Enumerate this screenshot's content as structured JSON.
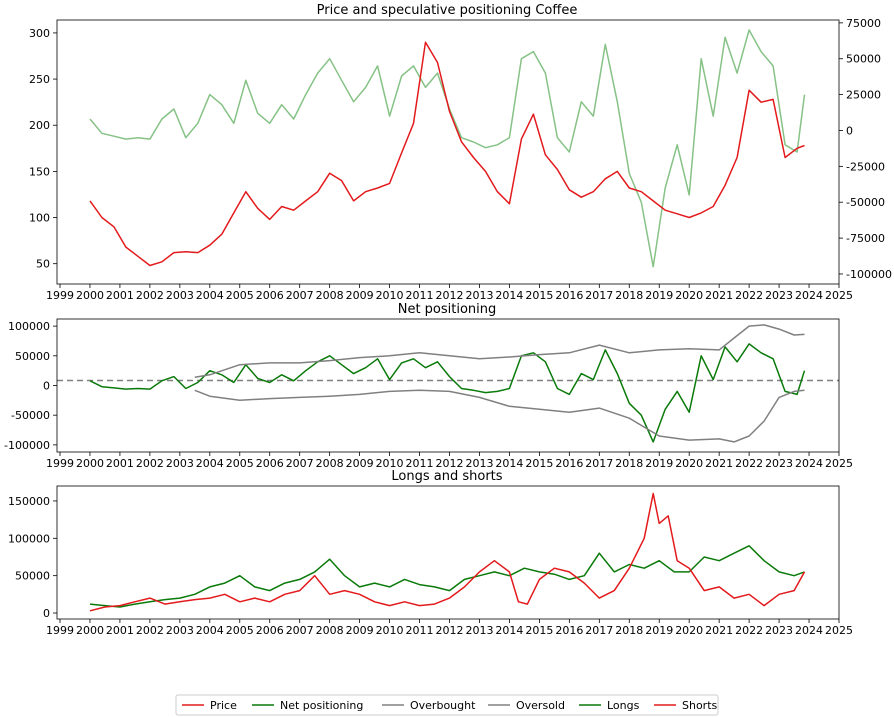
{
  "colors": {
    "price": "#e31a1c",
    "net": "#0a7a0a",
    "net_light": "#86c286",
    "bands": "#808080",
    "longs": "#0a7a0a",
    "shorts": "#e31a1c"
  },
  "legend": {
    "items": [
      {
        "label": "Price",
        "color": "#e31a1c"
      },
      {
        "label": "Net positioning",
        "color": "#0a7a0a"
      },
      {
        "label": "Overbought",
        "color": "#808080"
      },
      {
        "label": "Oversold",
        "color": "#808080"
      },
      {
        "label": "Longs",
        "color": "#0a7a0a"
      },
      {
        "label": "Shorts",
        "color": "#e31a1c"
      }
    ]
  },
  "chart_data": [
    {
      "type": "line",
      "title": "Price and speculative positioning Coffee",
      "x_ticks": [
        "1999",
        "2000",
        "2001",
        "2002",
        "2003",
        "2004",
        "2005",
        "2006",
        "2007",
        "2008",
        "2009",
        "2010",
        "2011",
        "2012",
        "2013",
        "2014",
        "2015",
        "2016",
        "2017",
        "2018",
        "2019",
        "2020",
        "2021",
        "2022",
        "2023",
        "2024",
        "2025"
      ],
      "xlim": [
        1998.9,
        2025.0
      ],
      "ylim": [
        28,
        314
      ],
      "y_ticks": [
        "50",
        "100",
        "150",
        "200",
        "250",
        "300"
      ],
      "y2lim": [
        -107000,
        77000
      ],
      "y2_ticks": [
        "-100000",
        "-75000",
        "-50000",
        "-25000",
        "0",
        "25000",
        "50000",
        "75000"
      ],
      "series": [
        {
          "name": "Price",
          "axis": "left",
          "color": "#e31a1c",
          "x": [
            2000.0,
            2000.4,
            2000.8,
            2001.2,
            2001.6,
            2002.0,
            2002.4,
            2002.8,
            2003.2,
            2003.6,
            2004.0,
            2004.4,
            2004.8,
            2005.2,
            2005.6,
            2006.0,
            2006.4,
            2006.8,
            2007.2,
            2007.6,
            2008.0,
            2008.4,
            2008.8,
            2009.2,
            2009.6,
            2010.0,
            2010.4,
            2010.8,
            2011.2,
            2011.6,
            2012.0,
            2012.4,
            2012.8,
            2013.2,
            2013.6,
            2014.0,
            2014.4,
            2014.8,
            2015.2,
            2015.6,
            2016.0,
            2016.4,
            2016.8,
            2017.2,
            2017.6,
            2018.0,
            2018.4,
            2018.8,
            2019.2,
            2019.6,
            2020.0,
            2020.4,
            2020.8,
            2021.2,
            2021.6,
            2022.0,
            2022.4,
            2022.8,
            2023.2,
            2023.6,
            2023.85
          ],
          "y": [
            118,
            100,
            90,
            68,
            58,
            48,
            52,
            62,
            63,
            62,
            70,
            82,
            105,
            128,
            110,
            98,
            112,
            108,
            118,
            128,
            148,
            140,
            118,
            128,
            132,
            137,
            170,
            202,
            290,
            268,
            215,
            182,
            165,
            150,
            128,
            115,
            185,
            212,
            168,
            152,
            130,
            122,
            128,
            142,
            150,
            132,
            128,
            118,
            108,
            104,
            100,
            105,
            112,
            135,
            165,
            238,
            225,
            228,
            165,
            175,
            178
          ]
        },
        {
          "name": "Net positioning",
          "axis": "right",
          "color": "#86c286",
          "x": [
            2000.0,
            2000.4,
            2000.8,
            2001.2,
            2001.6,
            2002.0,
            2002.4,
            2002.8,
            2003.2,
            2003.6,
            2004.0,
            2004.4,
            2004.8,
            2005.2,
            2005.6,
            2006.0,
            2006.4,
            2006.8,
            2007.2,
            2007.6,
            2008.0,
            2008.4,
            2008.8,
            2009.2,
            2009.6,
            2010.0,
            2010.4,
            2010.8,
            2011.2,
            2011.6,
            2012.0,
            2012.4,
            2012.8,
            2013.2,
            2013.6,
            2014.0,
            2014.4,
            2014.8,
            2015.2,
            2015.6,
            2016.0,
            2016.4,
            2016.8,
            2017.2,
            2017.6,
            2018.0,
            2018.4,
            2018.8,
            2019.2,
            2019.6,
            2020.0,
            2020.4,
            2020.8,
            2021.2,
            2021.6,
            2022.0,
            2022.4,
            2022.8,
            2023.2,
            2023.6,
            2023.85
          ],
          "y": [
            8000,
            -2000,
            -4000,
            -6000,
            -5000,
            -6000,
            8000,
            15000,
            -5000,
            5000,
            25000,
            18000,
            5000,
            35000,
            12000,
            5000,
            18000,
            8000,
            25000,
            40000,
            50000,
            35000,
            20000,
            30000,
            45000,
            10000,
            38000,
            45000,
            30000,
            40000,
            15000,
            -5000,
            -8000,
            -12000,
            -10000,
            -5000,
            50000,
            55000,
            40000,
            -5000,
            -15000,
            20000,
            10000,
            60000,
            20000,
            -30000,
            -50000,
            -95000,
            -40000,
            -10000,
            -45000,
            50000,
            10000,
            65000,
            40000,
            70000,
            55000,
            45000,
            -10000,
            -15000,
            25000
          ]
        }
      ]
    },
    {
      "type": "line",
      "title": "Net positioning",
      "x_ticks": [
        "1999",
        "2000",
        "2001",
        "2002",
        "2003",
        "2004",
        "2005",
        "2006",
        "2007",
        "2008",
        "2009",
        "2010",
        "2011",
        "2012",
        "2013",
        "2014",
        "2015",
        "2016",
        "2017",
        "2018",
        "2019",
        "2020",
        "2021",
        "2022",
        "2023",
        "2024",
        "2025"
      ],
      "xlim": [
        1998.9,
        2025.0
      ],
      "ylim": [
        -112000,
        112000
      ],
      "y_ticks": [
        "-100000",
        "-50000",
        "0",
        "50000",
        "100000"
      ],
      "reference_line": 8500,
      "series": [
        {
          "name": "Net positioning",
          "color": "#0a7a0a",
          "x": [
            2000.0,
            2000.4,
            2000.8,
            2001.2,
            2001.6,
            2002.0,
            2002.4,
            2002.8,
            2003.2,
            2003.6,
            2004.0,
            2004.4,
            2004.8,
            2005.2,
            2005.6,
            2006.0,
            2006.4,
            2006.8,
            2007.2,
            2007.6,
            2008.0,
            2008.4,
            2008.8,
            2009.2,
            2009.6,
            2010.0,
            2010.4,
            2010.8,
            2011.2,
            2011.6,
            2012.0,
            2012.4,
            2012.8,
            2013.2,
            2013.6,
            2014.0,
            2014.4,
            2014.8,
            2015.2,
            2015.6,
            2016.0,
            2016.4,
            2016.8,
            2017.2,
            2017.6,
            2018.0,
            2018.4,
            2018.8,
            2019.2,
            2019.6,
            2020.0,
            2020.4,
            2020.8,
            2021.2,
            2021.6,
            2022.0,
            2022.4,
            2022.8,
            2023.2,
            2023.6,
            2023.85
          ],
          "y": [
            8000,
            -2000,
            -4000,
            -6000,
            -5000,
            -6000,
            8000,
            15000,
            -5000,
            5000,
            25000,
            18000,
            5000,
            35000,
            12000,
            5000,
            18000,
            8000,
            25000,
            40000,
            50000,
            35000,
            20000,
            30000,
            45000,
            10000,
            38000,
            45000,
            30000,
            40000,
            15000,
            -5000,
            -8000,
            -12000,
            -10000,
            -5000,
            50000,
            55000,
            40000,
            -5000,
            -15000,
            20000,
            10000,
            60000,
            20000,
            -30000,
            -50000,
            -95000,
            -40000,
            -10000,
            -45000,
            50000,
            10000,
            65000,
            40000,
            70000,
            55000,
            45000,
            -10000,
            -15000,
            25000
          ]
        },
        {
          "name": "Overbought",
          "color": "#808080",
          "x": [
            2003.5,
            2004.0,
            2005.0,
            2006.0,
            2007.0,
            2008.0,
            2009.0,
            2010.0,
            2011.0,
            2012.0,
            2013.0,
            2014.0,
            2015.0,
            2016.0,
            2017.0,
            2018.0,
            2019.0,
            2020.0,
            2021.0,
            2021.5,
            2022.0,
            2022.5,
            2023.0,
            2023.5,
            2023.85
          ],
          "y": [
            14000,
            18000,
            35000,
            38000,
            38000,
            42000,
            47000,
            50000,
            55000,
            50000,
            45000,
            48000,
            52000,
            55000,
            68000,
            55000,
            60000,
            62000,
            60000,
            80000,
            100000,
            102000,
            95000,
            85000,
            86000
          ]
        },
        {
          "name": "Oversold",
          "color": "#808080",
          "x": [
            2003.5,
            2004.0,
            2005.0,
            2006.0,
            2007.0,
            2008.0,
            2009.0,
            2010.0,
            2011.0,
            2012.0,
            2013.0,
            2014.0,
            2015.0,
            2016.0,
            2017.0,
            2018.0,
            2019.0,
            2020.0,
            2021.0,
            2021.5,
            2022.0,
            2022.5,
            2023.0,
            2023.5,
            2023.85
          ],
          "y": [
            -8000,
            -18000,
            -25000,
            -22000,
            -20000,
            -18000,
            -15000,
            -10000,
            -8000,
            -10000,
            -20000,
            -35000,
            -40000,
            -45000,
            -38000,
            -55000,
            -85000,
            -92000,
            -90000,
            -95000,
            -85000,
            -60000,
            -20000,
            -10000,
            -8000
          ]
        }
      ]
    },
    {
      "type": "line",
      "title": "Longs and shorts",
      "x_ticks": [
        "1999",
        "2000",
        "2001",
        "2002",
        "2003",
        "2004",
        "2005",
        "2006",
        "2007",
        "2008",
        "2009",
        "2010",
        "2011",
        "2012",
        "2013",
        "2014",
        "2015",
        "2016",
        "2017",
        "2018",
        "2019",
        "2020",
        "2021",
        "2022",
        "2023",
        "2024",
        "2025"
      ],
      "xlim": [
        1998.9,
        2025.0
      ],
      "ylim": [
        -8000,
        170000
      ],
      "y_ticks": [
        "0",
        "50000",
        "100000",
        "150000"
      ],
      "series": [
        {
          "name": "Longs",
          "color": "#0a7a0a",
          "x": [
            2000.0,
            2000.5,
            2001.0,
            2001.5,
            2002.0,
            2002.5,
            2003.0,
            2003.5,
            2004.0,
            2004.5,
            2005.0,
            2005.5,
            2006.0,
            2006.5,
            2007.0,
            2007.5,
            2008.0,
            2008.5,
            2009.0,
            2009.5,
            2010.0,
            2010.5,
            2011.0,
            2011.5,
            2012.0,
            2012.5,
            2013.0,
            2013.5,
            2014.0,
            2014.5,
            2015.0,
            2015.5,
            2016.0,
            2016.5,
            2017.0,
            2017.5,
            2018.0,
            2018.5,
            2019.0,
            2019.5,
            2020.0,
            2020.5,
            2021.0,
            2021.5,
            2022.0,
            2022.5,
            2023.0,
            2023.5,
            2023.85
          ],
          "y": [
            12000,
            10000,
            8000,
            12000,
            15000,
            18000,
            20000,
            25000,
            35000,
            40000,
            50000,
            35000,
            30000,
            40000,
            45000,
            55000,
            72000,
            50000,
            35000,
            40000,
            35000,
            45000,
            38000,
            35000,
            30000,
            45000,
            50000,
            55000,
            50000,
            60000,
            55000,
            52000,
            45000,
            50000,
            80000,
            55000,
            65000,
            60000,
            70000,
            55000,
            55000,
            75000,
            70000,
            80000,
            90000,
            70000,
            55000,
            50000,
            55000
          ]
        },
        {
          "name": "Shorts",
          "color": "#e31a1c",
          "x": [
            2000.0,
            2000.5,
            2001.0,
            2001.5,
            2002.0,
            2002.5,
            2003.0,
            2003.5,
            2004.0,
            2004.5,
            2005.0,
            2005.5,
            2006.0,
            2006.5,
            2007.0,
            2007.5,
            2008.0,
            2008.5,
            2009.0,
            2009.5,
            2010.0,
            2010.5,
            2011.0,
            2011.5,
            2012.0,
            2012.5,
            2013.0,
            2013.5,
            2014.0,
            2014.3,
            2014.6,
            2015.0,
            2015.5,
            2016.0,
            2016.5,
            2017.0,
            2017.5,
            2018.0,
            2018.5,
            2018.8,
            2019.0,
            2019.3,
            2019.6,
            2020.0,
            2020.5,
            2021.0,
            2021.5,
            2022.0,
            2022.5,
            2023.0,
            2023.5,
            2023.85
          ],
          "y": [
            3000,
            8000,
            10000,
            15000,
            20000,
            12000,
            15000,
            18000,
            20000,
            25000,
            15000,
            20000,
            15000,
            25000,
            30000,
            50000,
            25000,
            30000,
            25000,
            15000,
            10000,
            15000,
            10000,
            12000,
            20000,
            35000,
            55000,
            70000,
            55000,
            15000,
            12000,
            45000,
            60000,
            55000,
            40000,
            20000,
            30000,
            60000,
            100000,
            160000,
            120000,
            130000,
            70000,
            60000,
            30000,
            35000,
            20000,
            25000,
            10000,
            25000,
            30000,
            55000
          ]
        }
      ]
    }
  ]
}
